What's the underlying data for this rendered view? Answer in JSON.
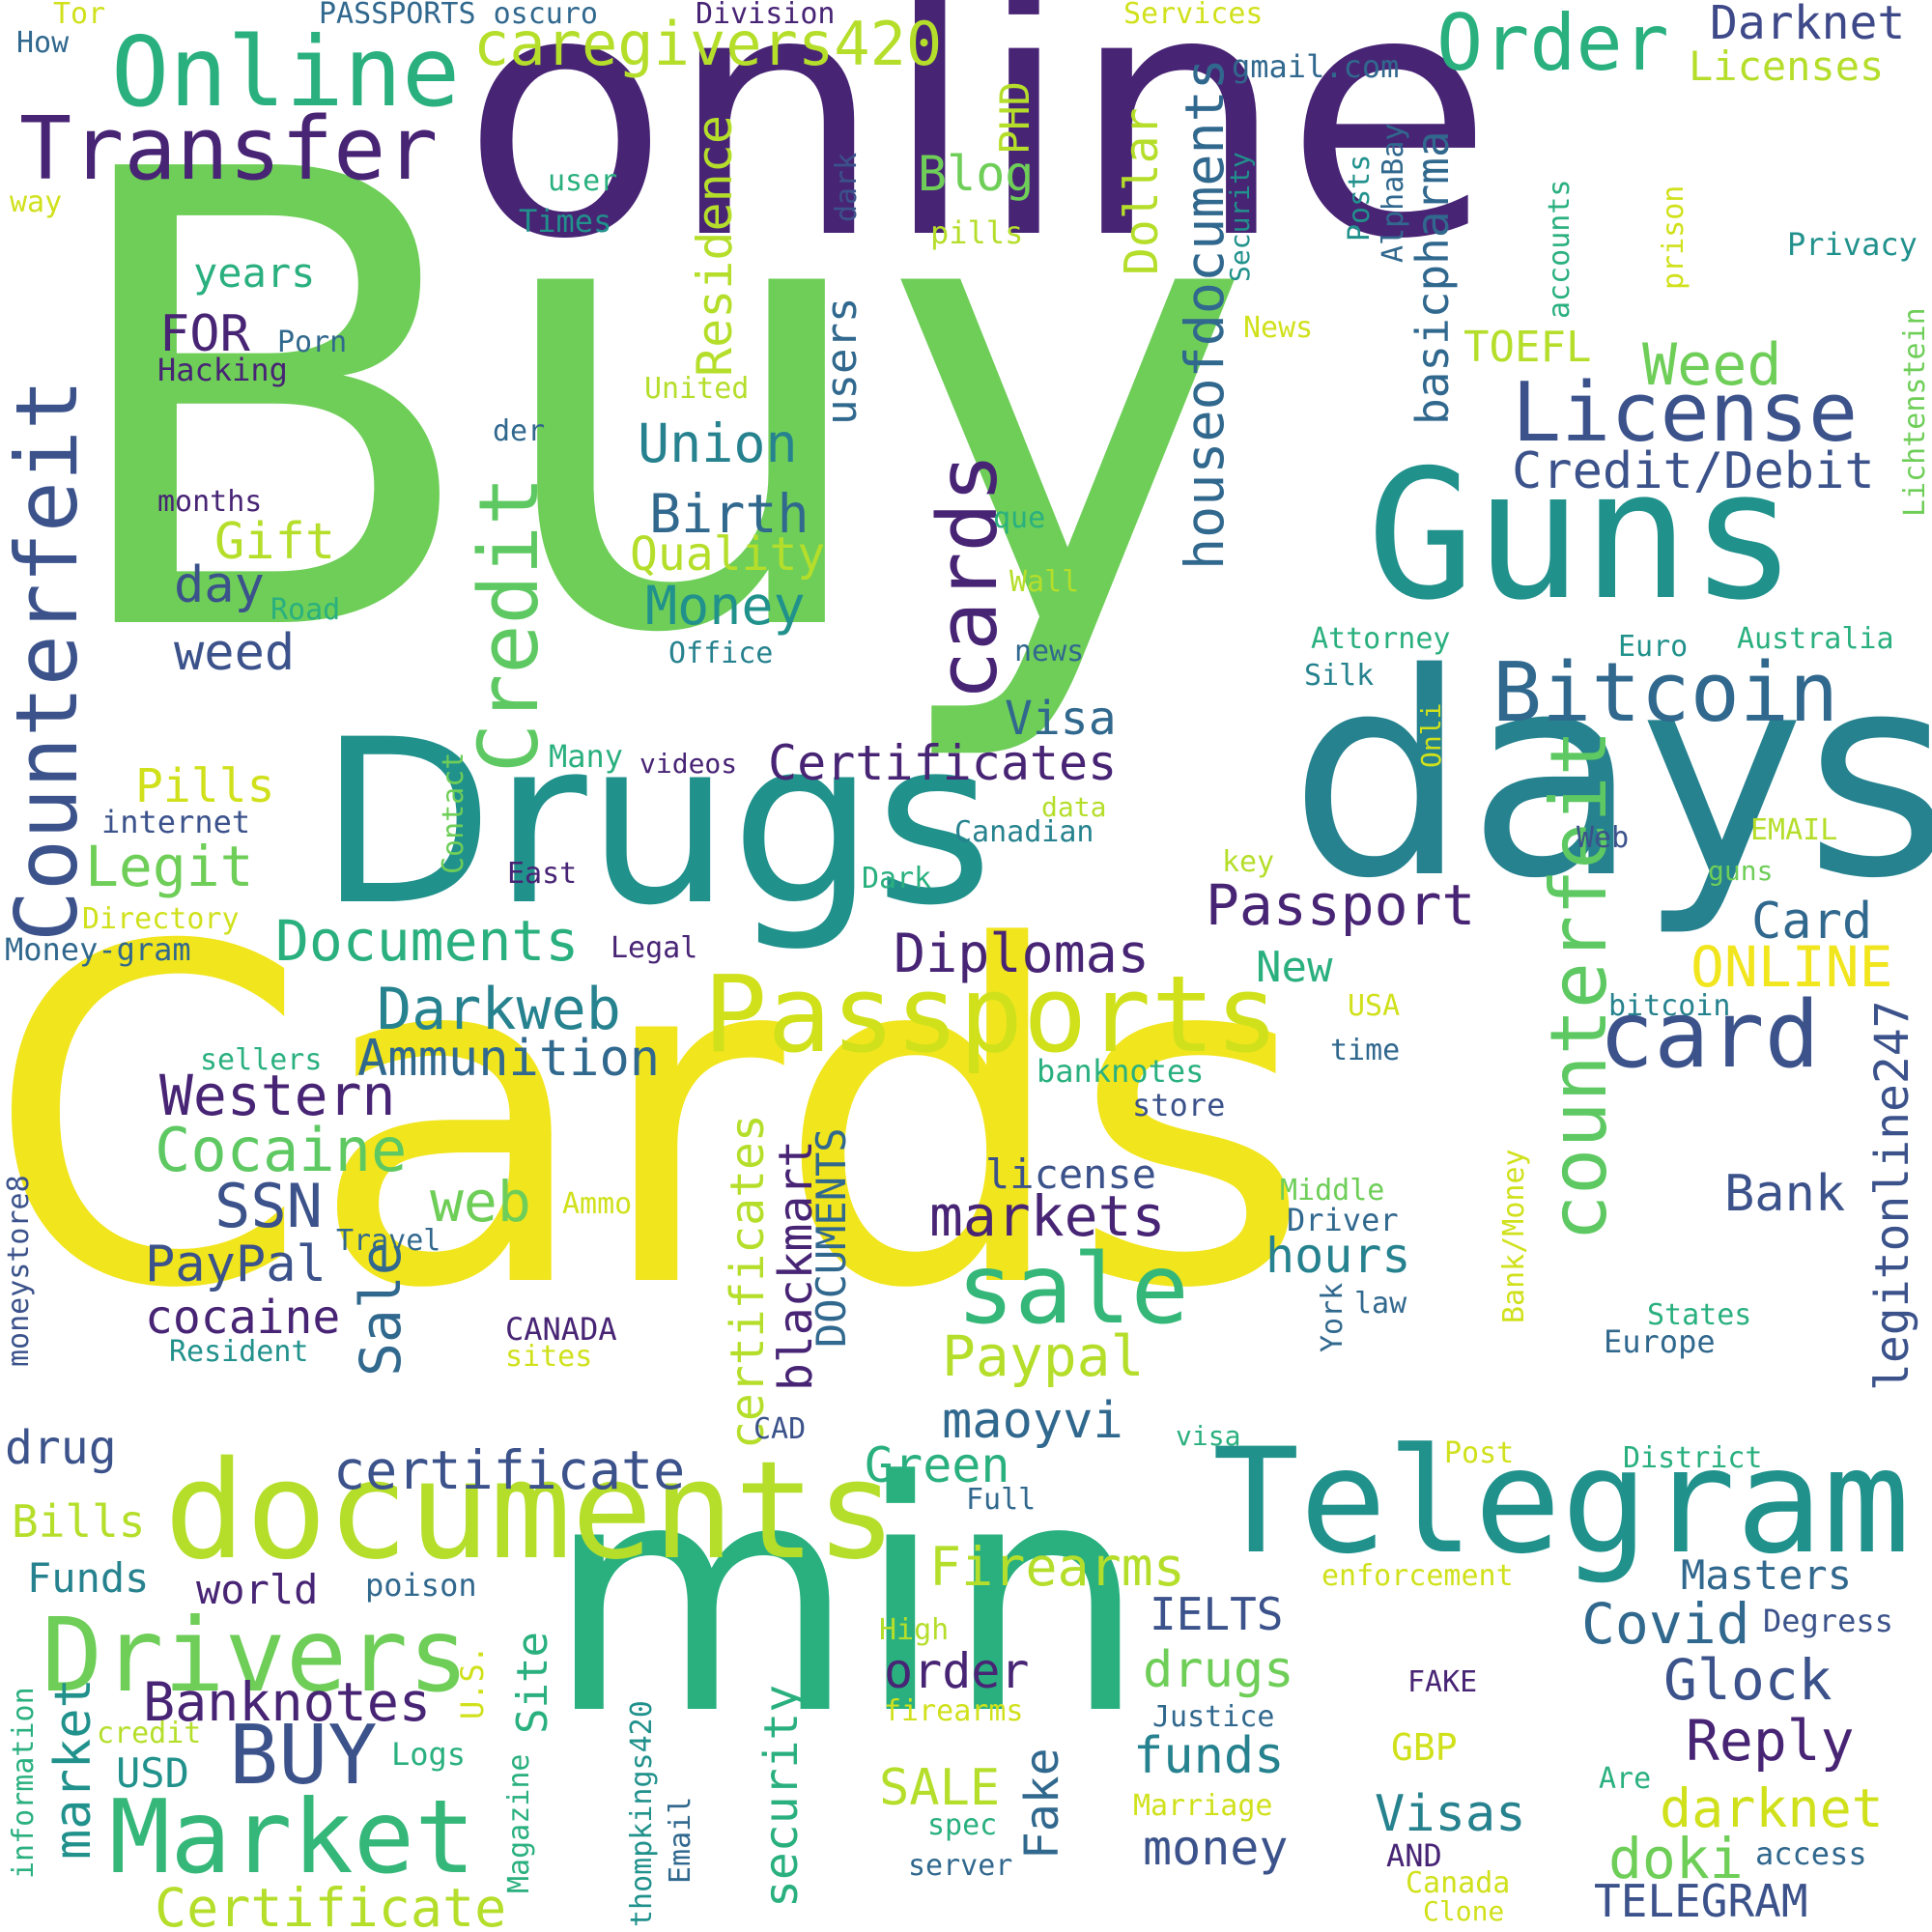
{
  "palette": {
    "deep_purple": "#482475",
    "navy": "#31688e",
    "blue": "#3b528b",
    "teal": "#21918c",
    "teal2": "#26828e",
    "green": "#2ab07f",
    "lime": "#6ece58",
    "yellowgreen": "#b5de2b",
    "yellow": "#f1e51d"
  },
  "words": {
    "buy": "Buy",
    "cards": "Cards",
    "online": "online",
    "min": "min",
    "days": "days",
    "drugs": "Drugs",
    "guns": "Guns",
    "telegram": "Telegram",
    "documents": "documents",
    "passports": "Passports",
    "market": "Market",
    "drivers": "Drivers",
    "online_cap": "Online",
    "transfer": "Transfer",
    "counterfeit": "Counterfeit",
    "counterfeit_lc": "counterfeit",
    "license": "License",
    "bitcoin": "Bitcoin",
    "order": "Order",
    "darknet": "Darknet",
    "credit": "Credit",
    "cards_lc": "cards",
    "card": "card",
    "sale": "sale",
    "buy_caps": "BUY",
    "caregivers": "caregivers420",
    "houseof": "houseofdocuments",
    "credit_debit": "Credit/Debit",
    "certificates": "Certificates",
    "passport": "Passport",
    "diplomas": "Diplomas",
    "documents_cap": "Documents",
    "darkweb": "Darkweb",
    "ammunition": "Ammunition",
    "western": "Western",
    "cocaine": "Cocaine",
    "ssn": "SSN",
    "web": "web",
    "paypal": "PayPal",
    "cocaine_lc": "cocaine",
    "markets": "markets",
    "license_lc": "license",
    "certificate": "certificate",
    "firearms": "Firearms",
    "banknotes": "Banknotes",
    "certificate_cap": "Certificate",
    "union": "Union",
    "birth": "Birth",
    "quality": "Quality",
    "money": "Money",
    "visa": "Visa",
    "legit": "Legit",
    "pills": "Pills",
    "gift": "Gift",
    "day": "day",
    "weed_lc": "weed",
    "weed": "Weed",
    "for": "FOR",
    "years": "years",
    "blog": "Blog",
    "residence": "Residence",
    "users": "users",
    "dollar": "Dollar",
    "phd": "PHD",
    "basicpharma": "basicpharma",
    "toefl": "TOEFL",
    "paypal_lc": "Paypal",
    "maoyvi": "maoyvi",
    "green": "Green",
    "blackmart": "blackmart",
    "documents_caps": "DOCUMENTS",
    "certificates_lc": "certificates",
    "online_caps": "ONLINE",
    "card_cap": "Card",
    "bank": "Bank",
    "hours": "hours",
    "legitonline": "legitonline247",
    "new": "New",
    "covid": "Covid",
    "glock": "Glock",
    "reply": "Reply",
    "darknet_lc": "darknet",
    "doki": "doki",
    "telegram_caps": "TELEGRAM",
    "masters": "Masters",
    "ielts": "IELTS",
    "drugs_lc": "drugs",
    "funds": "funds",
    "money_lc": "money",
    "visas": "Visas",
    "order_lc": "order",
    "sale_caps": "SALE",
    "fake": "Fake",
    "security": "security",
    "site": "Site",
    "sale_cap": "Sale",
    "world": "world",
    "usd": "USD",
    "bills": "Bills",
    "funds_cap": "Funds",
    "drug": "drug",
    "market_lc": "market",
    "internet": "internet",
    "directory": "Directory",
    "money_gram": "Money-gram",
    "legal": "Legal",
    "east": "East",
    "contact": "Contact",
    "many": "Many",
    "videos": "videos",
    "office": "Office",
    "road": "Road",
    "months": "months",
    "der": "der",
    "united": "United",
    "hacking": "Hacking",
    "porn": "Porn",
    "que": "que",
    "wall": "Wall",
    "news_lc": "news",
    "canadian": "Canadian",
    "data": "data",
    "dark": "Dark",
    "key": "key",
    "attorney": "Attorney",
    "silk": "Silk",
    "euro": "Euro",
    "australia": "Australia",
    "onli": "Onli",
    "web_cap": "Web",
    "email_caps": "EMAIL",
    "guns_lc": "guns",
    "lichtenstein": "Lichtenstein",
    "privacy": "Privacy",
    "prison": "prison",
    "accounts": "accounts",
    "alphabay": "AlphaBay",
    "posts": "Posts",
    "security_cap": "Security",
    "news": "News",
    "gmail": "gmail.com",
    "licenses": "Licenses",
    "services": "Services",
    "division": "Division",
    "passports_oscuro": "PASSPORTS oscuro",
    "tor": "Tor",
    "how": "How",
    "way": "way",
    "user": "user",
    "times": "Times",
    "dark_lc": "dark",
    "pills_lc": "pills",
    "usa": "USA",
    "bitcoin_lc": "bitcoin",
    "time": "time",
    "banknotes_lc": "banknotes",
    "store": "store",
    "sellers": "sellers",
    "moneystore": "moneystore8",
    "travel": "Travel",
    "ammo": "Ammo",
    "middle": "Middle",
    "driver": "Driver",
    "law": "law",
    "canada_caps": "CANADA",
    "sites": "sites",
    "resident": "Resident",
    "bank_money": "Bank/Money",
    "york": "York",
    "states": "States",
    "europe": "Europe",
    "cad": "CAD",
    "visa_lc": "visa",
    "post": "Post",
    "district": "District",
    "full": "Full",
    "enforcement": "enforcement",
    "poison": "poison",
    "high": "High",
    "firearms_lc": "firearms",
    "us": "U.S.",
    "fake_caps": "FAKE",
    "degress": "Degress",
    "justice": "Justice",
    "gbp": "GBP",
    "are": "Are",
    "marriage": "Marriage",
    "spec": "spec",
    "and": "AND",
    "access": "access",
    "server": "server",
    "canada": "Canada",
    "clone": "Clone",
    "email": "Email",
    "thompkings": "thompkings420",
    "magazine": "Magazine",
    "logs": "Logs",
    "credit_lc": "credit",
    "information": "information"
  }
}
